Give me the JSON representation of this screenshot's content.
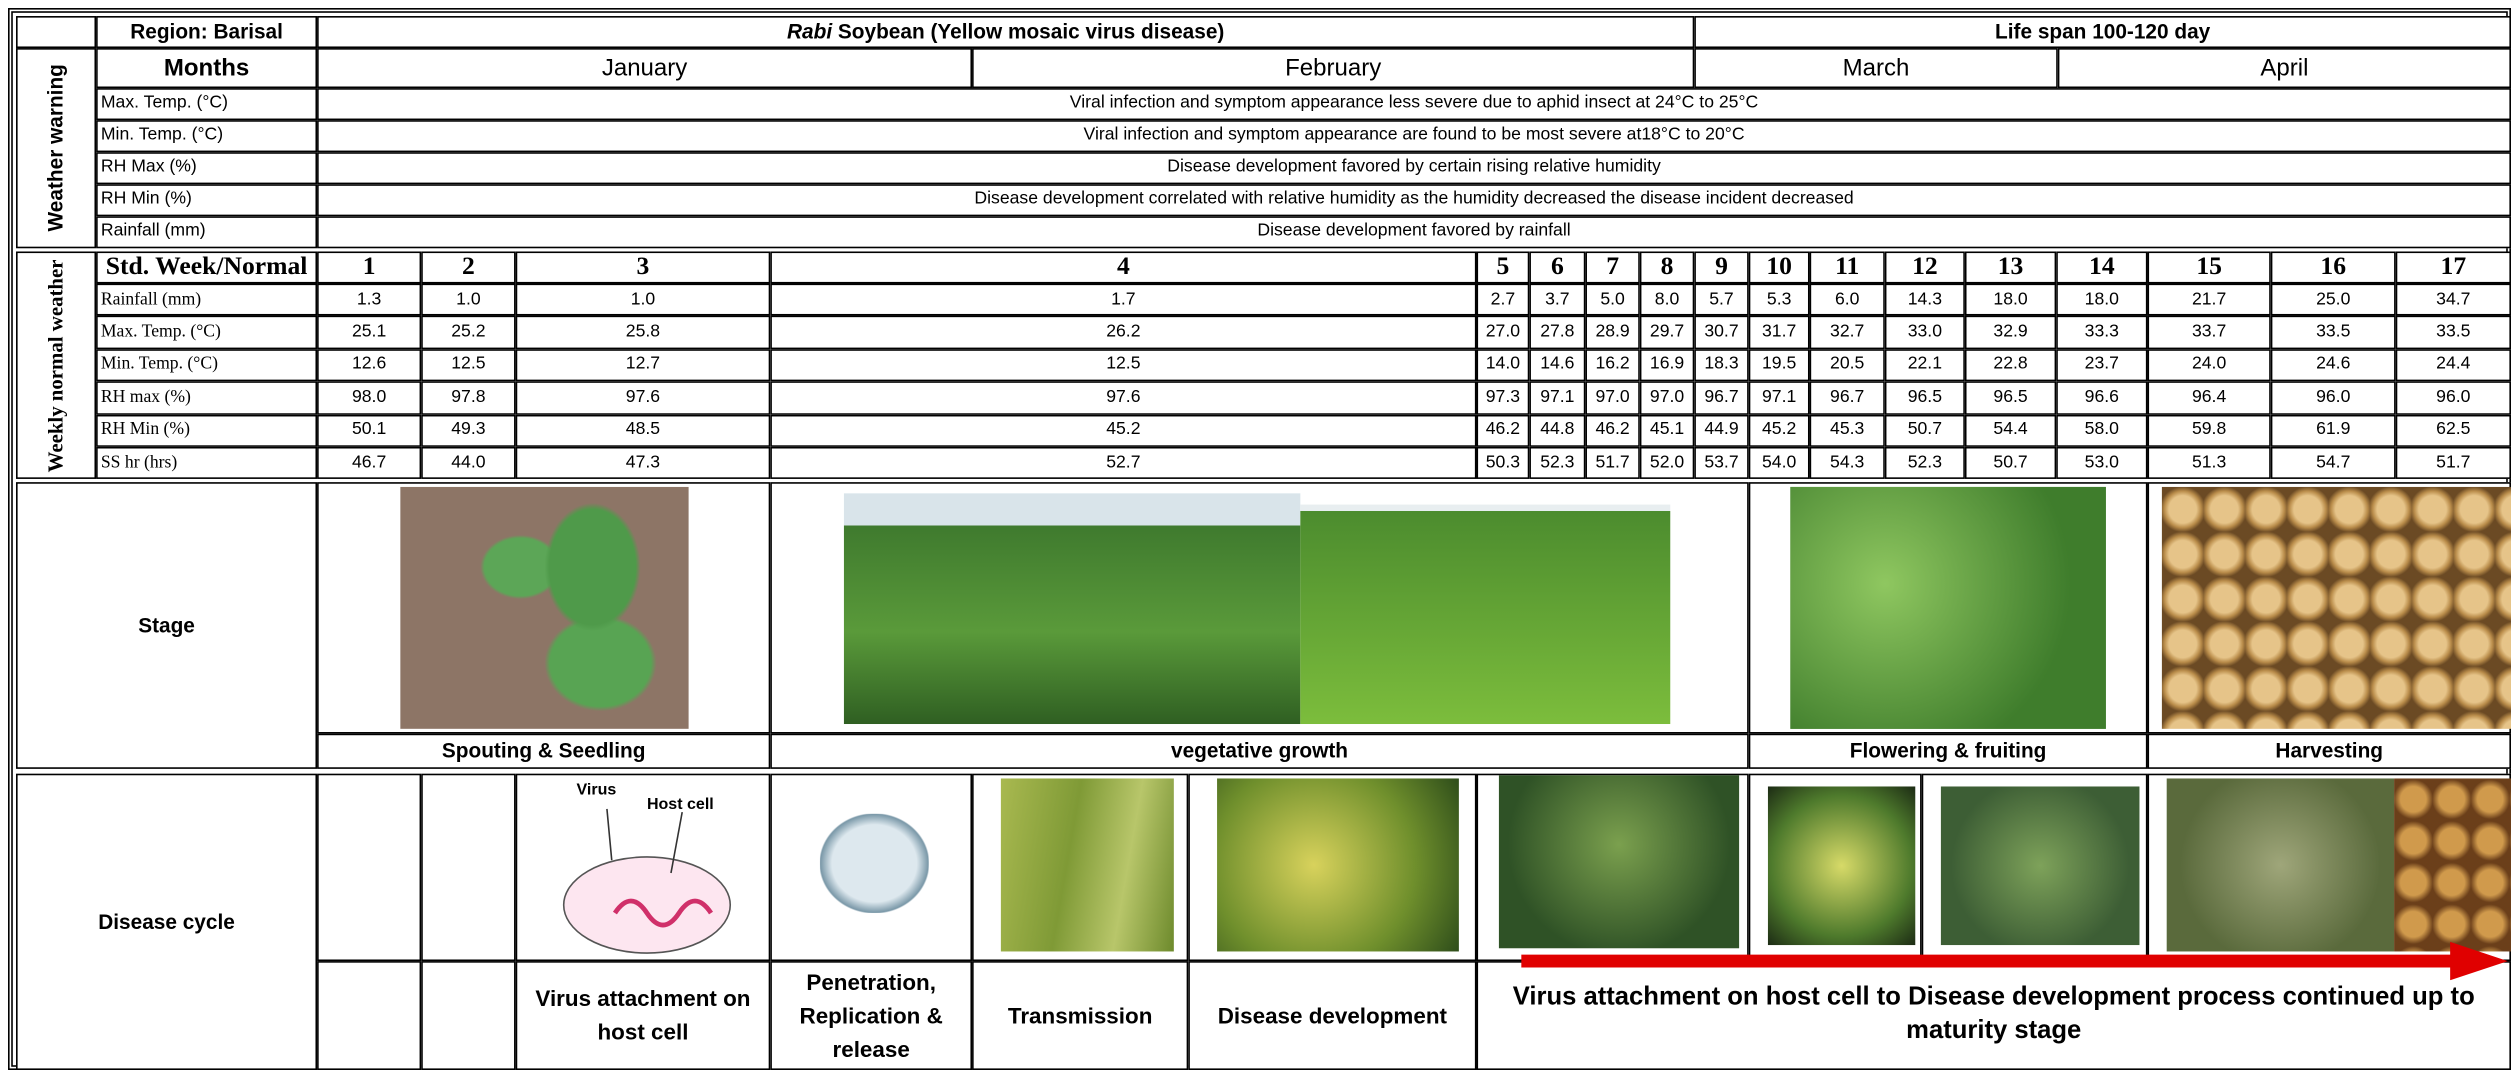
{
  "header": {
    "region": "Region: Barisal",
    "title_italic": "Rabi",
    "title_rest": " Soybean (Yellow mosaic virus disease)",
    "life_span": "Life span 100-120 day"
  },
  "months": {
    "label": "Months",
    "names": [
      "January",
      "February",
      "March",
      "April"
    ]
  },
  "weather_warning": {
    "label": "Weather warning",
    "rows": [
      {
        "parameter": "Max. Temp. (°C)",
        "note": "Viral infection and symptom appearance less severe due to aphid insect at 24°C to 25°C"
      },
      {
        "parameter": "Min. Temp. (°C)",
        "note": "Viral infection and symptom appearance are found to be most severe at18°C to 20°C"
      },
      {
        "parameter": "RH Max (%)",
        "note": "Disease development favored by certain rising relative humidity"
      },
      {
        "parameter": "RH Min (%)",
        "note": "Disease development correlated with relative humidity as the humidity decreased the disease incident decreased"
      },
      {
        "parameter": "Rainfall (mm)",
        "note": "Disease development favored by rainfall"
      }
    ]
  },
  "weekly_weather": {
    "label": "Weekly normal weather",
    "header": "Std. Week/Normal",
    "weeks": [
      1,
      2,
      3,
      4,
      5,
      6,
      7,
      8,
      9,
      10,
      11,
      12,
      13,
      14,
      15,
      16,
      17
    ],
    "rows": [
      {
        "parameter": "Rainfall (mm)",
        "values": [
          "1.3",
          "1.0",
          "1.0",
          "1.7",
          "2.7",
          "3.7",
          "5.0",
          "8.0",
          "5.7",
          "5.3",
          "6.0",
          "14.3",
          "18.0",
          "18.0",
          "21.7",
          "25.0",
          "34.7"
        ]
      },
      {
        "parameter": "Max. Temp. (°C)",
        "values": [
          "25.1",
          "25.2",
          "25.8",
          "26.2",
          "27.0",
          "27.8",
          "28.9",
          "29.7",
          "30.7",
          "31.7",
          "32.7",
          "33.0",
          "32.9",
          "33.3",
          "33.7",
          "33.5",
          "33.5"
        ]
      },
      {
        "parameter": "Min. Temp. (°C)",
        "values": [
          "12.6",
          "12.5",
          "12.7",
          "12.5",
          "14.0",
          "14.6",
          "16.2",
          "16.9",
          "18.3",
          "19.5",
          "20.5",
          "22.1",
          "22.8",
          "23.7",
          "24.0",
          "24.6",
          "24.4"
        ]
      },
      {
        "parameter": "RH max (%)",
        "values": [
          "98.0",
          "97.8",
          "97.6",
          "97.6",
          "97.3",
          "97.1",
          "97.0",
          "97.0",
          "96.7",
          "97.1",
          "96.7",
          "96.5",
          "96.5",
          "96.6",
          "96.4",
          "96.0",
          "96.0"
        ]
      },
      {
        "parameter": "RH Min (%)",
        "values": [
          "50.1",
          "49.3",
          "48.5",
          "45.2",
          "46.2",
          "44.8",
          "46.2",
          "45.1",
          "44.9",
          "45.2",
          "45.3",
          "50.7",
          "54.4",
          "58.0",
          "59.8",
          "61.9",
          "62.5"
        ]
      },
      {
        "parameter": "SS hr (hrs)",
        "values": [
          "46.7",
          "44.0",
          "47.3",
          "52.7",
          "50.3",
          "52.3",
          "51.7",
          "52.0",
          "53.7",
          "54.0",
          "54.3",
          "52.3",
          "50.7",
          "53.0",
          "51.3",
          "54.7",
          "51.7"
        ]
      }
    ]
  },
  "stage": {
    "label": "Stage",
    "phases": [
      "Spouting & Seedling",
      "vegetative growth",
      "Flowering & fruiting",
      "Harvesting"
    ]
  },
  "disease_cycle": {
    "label": "Disease cycle",
    "diagram_labels": {
      "virus": "Virus",
      "host_cell": "Host cell"
    },
    "steps": [
      "Virus attachment on host cell",
      "Penetration, Replication & release",
      "Transmission",
      "Disease development",
      "Virus attachment on host cell to Disease development process continued up to maturity stage"
    ]
  }
}
